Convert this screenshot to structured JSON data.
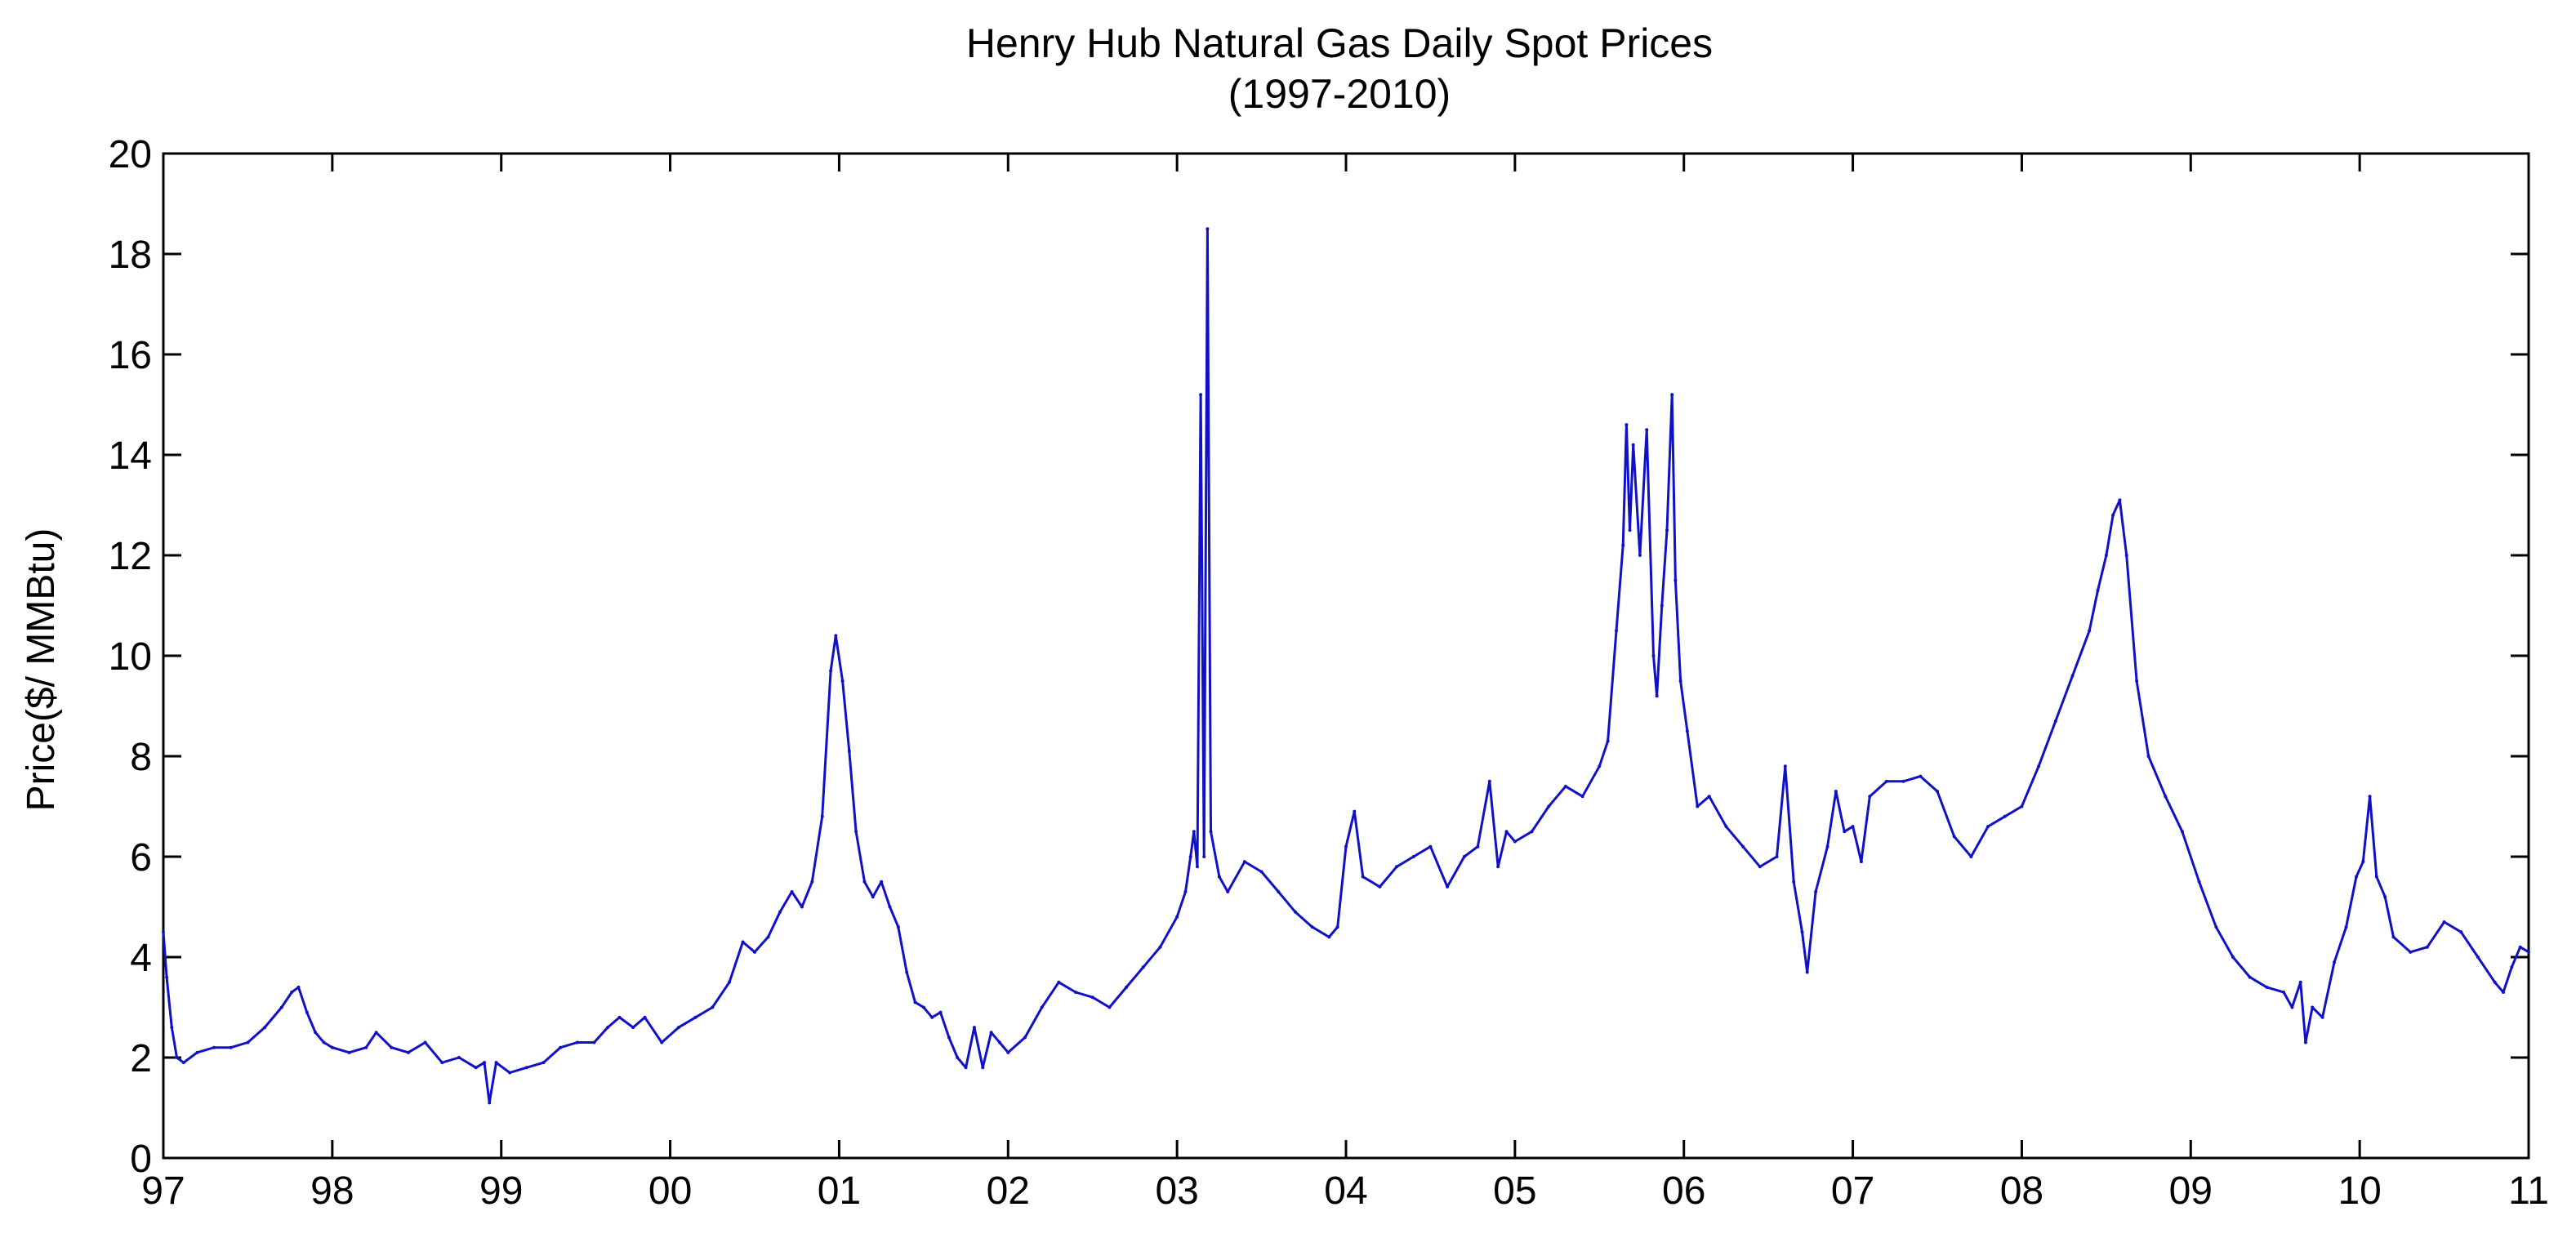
{
  "colors": {
    "series": "#1010c8",
    "axis": "#000000",
    "background": "#ffffff"
  },
  "chart_data": {
    "type": "line",
    "title": "Henry Hub Natural Gas Daily Spot Prices",
    "subtitle": "(1997-2010)",
    "xlabel": "",
    "ylabel": "Price($/ MMBtu)",
    "xlim": [
      1997,
      2011
    ],
    "ylim": [
      0,
      20
    ],
    "grid": false,
    "legend": "none",
    "x_ticks": [
      {
        "value": 1997,
        "label": "97"
      },
      {
        "value": 1998,
        "label": "98"
      },
      {
        "value": 1999,
        "label": "99"
      },
      {
        "value": 2000,
        "label": "00"
      },
      {
        "value": 2001,
        "label": "01"
      },
      {
        "value": 2002,
        "label": "02"
      },
      {
        "value": 2003,
        "label": "03"
      },
      {
        "value": 2004,
        "label": "04"
      },
      {
        "value": 2005,
        "label": "05"
      },
      {
        "value": 2006,
        "label": "06"
      },
      {
        "value": 2007,
        "label": "07"
      },
      {
        "value": 2008,
        "label": "08"
      },
      {
        "value": 2009,
        "label": "09"
      },
      {
        "value": 2010,
        "label": "10"
      },
      {
        "value": 2011,
        "label": "11"
      }
    ],
    "y_ticks": [
      {
        "value": 0,
        "label": "0"
      },
      {
        "value": 2,
        "label": "2"
      },
      {
        "value": 4,
        "label": "4"
      },
      {
        "value": 6,
        "label": "6"
      },
      {
        "value": 8,
        "label": "8"
      },
      {
        "value": 10,
        "label": "10"
      },
      {
        "value": 12,
        "label": "12"
      },
      {
        "value": 14,
        "label": "14"
      },
      {
        "value": 16,
        "label": "16"
      },
      {
        "value": 18,
        "label": "18"
      },
      {
        "value": 20,
        "label": "20"
      }
    ],
    "series": [
      {
        "x": [
          1997.0,
          1997.02,
          1997.05,
          1997.08,
          1997.12,
          1997.2,
          1997.3,
          1997.4,
          1997.5,
          1997.6,
          1997.7,
          1997.76,
          1997.8,
          1997.85,
          1997.9,
          1997.95,
          1998.0,
          1998.1,
          1998.2,
          1998.26,
          1998.35,
          1998.45,
          1998.55,
          1998.65,
          1998.75,
          1998.85,
          1998.9,
          1998.93,
          1998.97,
          1999.05,
          1999.15,
          1999.25,
          1999.35,
          1999.45,
          1999.55,
          1999.63,
          1999.7,
          1999.78,
          1999.85,
          1999.95,
          2000.05,
          2000.15,
          2000.25,
          2000.35,
          2000.43,
          2000.5,
          2000.58,
          2000.65,
          2000.72,
          2000.78,
          2000.84,
          2000.9,
          2000.95,
          2000.98,
          2001.02,
          2001.06,
          2001.1,
          2001.15,
          2001.2,
          2001.25,
          2001.3,
          2001.35,
          2001.4,
          2001.45,
          2001.5,
          2001.55,
          2001.6,
          2001.65,
          2001.7,
          2001.75,
          2001.8,
          2001.85,
          2001.9,
          2001.95,
          2002.0,
          2002.1,
          2002.2,
          2002.3,
          2002.4,
          2002.5,
          2002.6,
          2002.7,
          2002.8,
          2002.9,
          2003.0,
          2003.05,
          2003.08,
          2003.1,
          2003.12,
          2003.14,
          2003.16,
          2003.18,
          2003.2,
          2003.25,
          2003.3,
          2003.4,
          2003.5,
          2003.6,
          2003.7,
          2003.8,
          2003.9,
          2003.95,
          2004.0,
          2004.05,
          2004.1,
          2004.2,
          2004.3,
          2004.4,
          2004.5,
          2004.6,
          2004.7,
          2004.78,
          2004.85,
          2004.9,
          2004.95,
          2005.0,
          2005.1,
          2005.2,
          2005.3,
          2005.4,
          2005.5,
          2005.55,
          2005.6,
          2005.64,
          2005.66,
          2005.68,
          2005.7,
          2005.74,
          2005.78,
          2005.82,
          2005.84,
          2005.87,
          2005.9,
          2005.93,
          2005.95,
          2005.98,
          2006.02,
          2006.08,
          2006.15,
          2006.25,
          2006.35,
          2006.45,
          2006.55,
          2006.6,
          2006.65,
          2006.7,
          2006.73,
          2006.78,
          2006.85,
          2006.9,
          2006.95,
          2007.0,
          2007.05,
          2007.1,
          2007.2,
          2007.3,
          2007.4,
          2007.5,
          2007.6,
          2007.7,
          2007.8,
          2007.9,
          2008.0,
          2008.1,
          2008.2,
          2008.3,
          2008.4,
          2008.45,
          2008.5,
          2008.54,
          2008.58,
          2008.62,
          2008.68,
          2008.75,
          2008.85,
          2008.95,
          2009.05,
          2009.15,
          2009.25,
          2009.35,
          2009.45,
          2009.55,
          2009.6,
          2009.65,
          2009.68,
          2009.72,
          2009.78,
          2009.85,
          2009.92,
          2009.98,
          2010.02,
          2010.06,
          2010.1,
          2010.15,
          2010.2,
          2010.3,
          2010.4,
          2010.5,
          2010.6,
          2010.7,
          2010.8,
          2010.85,
          2010.9,
          2010.95,
          2011.0
        ],
        "y": [
          4.5,
          3.6,
          2.6,
          2.0,
          1.9,
          2.1,
          2.2,
          2.2,
          2.3,
          2.6,
          3.0,
          3.3,
          3.4,
          2.9,
          2.5,
          2.3,
          2.2,
          2.1,
          2.2,
          2.5,
          2.2,
          2.1,
          2.3,
          1.9,
          2.0,
          1.8,
          1.9,
          1.1,
          1.9,
          1.7,
          1.8,
          1.9,
          2.2,
          2.3,
          2.3,
          2.6,
          2.8,
          2.6,
          2.8,
          2.3,
          2.6,
          2.8,
          3.0,
          3.5,
          4.3,
          4.1,
          4.4,
          4.9,
          5.3,
          5.0,
          5.5,
          6.8,
          9.7,
          10.4,
          9.5,
          8.1,
          6.5,
          5.5,
          5.2,
          5.5,
          5.0,
          4.6,
          3.7,
          3.1,
          3.0,
          2.8,
          2.9,
          2.4,
          2.0,
          1.8,
          2.6,
          1.8,
          2.5,
          2.3,
          2.1,
          2.4,
          3.0,
          3.5,
          3.3,
          3.2,
          3.0,
          3.4,
          3.8,
          4.2,
          4.8,
          5.3,
          6.0,
          6.5,
          5.8,
          15.2,
          6.0,
          18.5,
          6.5,
          5.6,
          5.3,
          5.9,
          5.7,
          5.3,
          4.9,
          4.6,
          4.4,
          4.6,
          6.2,
          6.9,
          5.6,
          5.4,
          5.8,
          6.0,
          6.2,
          5.4,
          6.0,
          6.2,
          7.5,
          5.8,
          6.5,
          6.3,
          6.5,
          7.0,
          7.4,
          7.2,
          7.8,
          8.3,
          10.5,
          12.2,
          14.6,
          12.5,
          14.2,
          12.0,
          14.5,
          10.0,
          9.2,
          11.0,
          12.5,
          15.2,
          11.5,
          9.5,
          8.5,
          7.0,
          7.2,
          6.6,
          6.2,
          5.8,
          6.0,
          7.8,
          5.5,
          4.5,
          3.7,
          5.3,
          6.2,
          7.3,
          6.5,
          6.6,
          5.9,
          7.2,
          7.5,
          7.5,
          7.6,
          7.3,
          6.4,
          6.0,
          6.6,
          6.8,
          7.0,
          7.8,
          8.7,
          9.6,
          10.5,
          11.3,
          12.0,
          12.8,
          13.1,
          12.0,
          9.5,
          8.0,
          7.2,
          6.5,
          5.5,
          4.6,
          4.0,
          3.6,
          3.4,
          3.3,
          3.0,
          3.5,
          2.3,
          3.0,
          2.8,
          3.9,
          4.6,
          5.6,
          5.9,
          7.2,
          5.6,
          5.2,
          4.4,
          4.1,
          4.2,
          4.7,
          4.5,
          4.0,
          3.5,
          3.3,
          3.8,
          4.2,
          4.1
        ]
      }
    ]
  }
}
